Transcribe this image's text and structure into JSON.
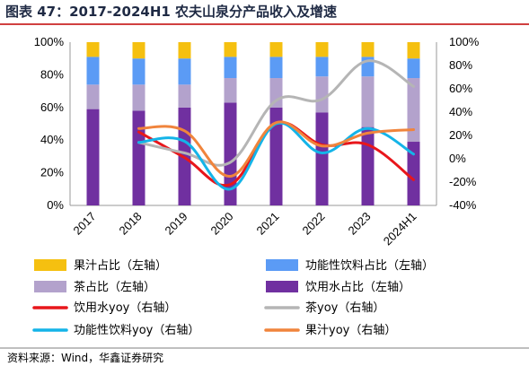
{
  "header": {
    "title": "图表 47：2017-2024H1 农夫山泉分产品收入及增速"
  },
  "footer": {
    "source": "资料来源：Wind，华鑫证券研究"
  },
  "colors": {
    "juice_share": "#F5C010",
    "functional_share": "#5B9BF5",
    "tea_share": "#B3A2CC",
    "water_share": "#7030A0",
    "water_yoy": "#E8161B",
    "tea_yoy": "#B5B5B5",
    "functional_yoy": "#14B4E8",
    "juice_yoy": "#F0843C",
    "title_rule": "#C00000"
  },
  "chart_data": {
    "type": "bar",
    "categories": [
      "2017",
      "2018",
      "2019",
      "2020",
      "2021",
      "2022",
      "2023",
      "2024H1"
    ],
    "left_axis": {
      "ticks": [
        "0%",
        "20%",
        "40%",
        "60%",
        "80%",
        "100%"
      ],
      "ylim": [
        0,
        100
      ]
    },
    "right_axis": {
      "ticks": [
        "-40%",
        "-20%",
        "0%",
        "20%",
        "40%",
        "60%",
        "80%",
        "100%"
      ],
      "ylim": [
        -40,
        100
      ]
    },
    "stacked_series": [
      {
        "name": "饮用水占比（左轴）",
        "axis": "left",
        "values": [
          59,
          58,
          60,
          63,
          60,
          57,
          48,
          39
        ]
      },
      {
        "name": "茶占比（左轴）",
        "axis": "left",
        "values": [
          15,
          16,
          14,
          15,
          18,
          22,
          31,
          39
        ]
      },
      {
        "name": "功能性饮料占比（左轴）",
        "axis": "left",
        "values": [
          17,
          16,
          16,
          13,
          13,
          12,
          12,
          12
        ]
      },
      {
        "name": "果汁占比（左轴）",
        "axis": "left",
        "values": [
          9,
          10,
          10,
          9,
          9,
          9,
          9,
          10
        ]
      }
    ],
    "line_series": [
      {
        "name": "饮用水yoy（右轴）",
        "axis": "right",
        "start": 1,
        "values": [
          15,
          23,
          1,
          -22,
          30,
          12,
          12,
          -18
        ]
      },
      {
        "name": "茶yoy（右轴）",
        "axis": "right",
        "start": 1,
        "values": [
          null,
          14,
          5,
          -3,
          50,
          51,
          84,
          62
        ]
      },
      {
        "name": "功能性饮料yoy（右轴）",
        "axis": "right",
        "start": 1,
        "values": [
          null,
          14,
          15,
          -26,
          30,
          5,
          26,
          4
        ]
      },
      {
        "name": "果汁yoy（右轴）",
        "axis": "right",
        "start": 1,
        "values": [
          null,
          26,
          24,
          -15,
          31,
          11,
          22,
          25
        ]
      }
    ],
    "legend_order": [
      "果汁占比（左轴）",
      "功能性饮料占比（左轴）",
      "茶占比（左轴）",
      "饮用水占比（左轴）",
      "饮用水yoy（右轴）",
      "茶yoy（右轴）",
      "功能性饮料yoy（右轴）",
      "果汁yoy（右轴）"
    ],
    "legend_position": "bottom"
  }
}
